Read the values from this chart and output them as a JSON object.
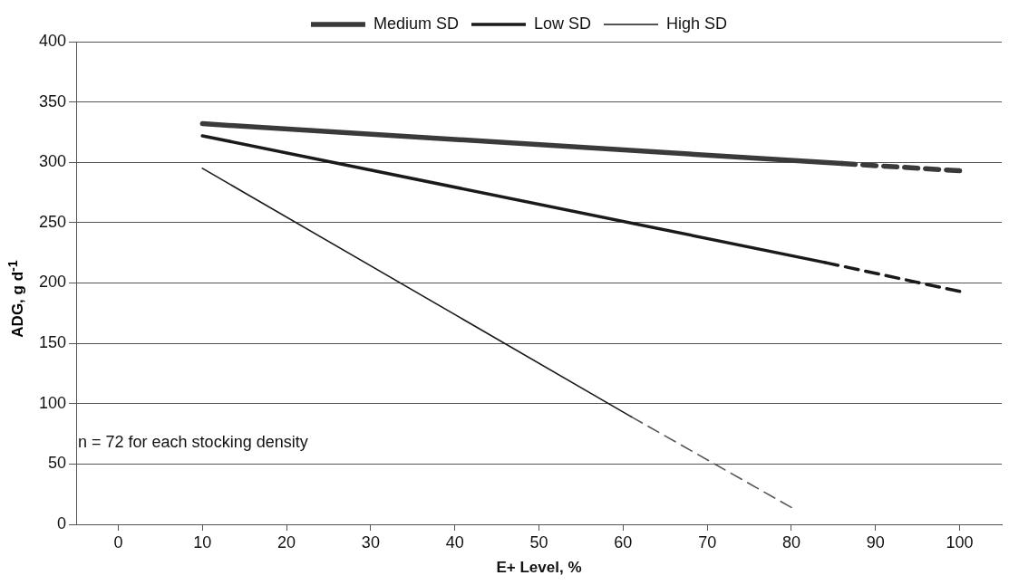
{
  "chart_data": {
    "type": "line",
    "xlabel": "E+ Level, %",
    "ylabel": "ADG, g d$^{-1}$",
    "xlim": [
      -5,
      105
    ],
    "xticks": [
      0,
      10,
      20,
      30,
      40,
      50,
      60,
      70,
      80,
      90,
      100
    ],
    "ylim": [
      0,
      400
    ],
    "yticks": [
      0,
      50,
      100,
      150,
      200,
      250,
      300,
      350,
      400
    ],
    "grid": "y",
    "legend": "top",
    "marker": "none",
    "annotations": [
      "n = 72 for each stocking density"
    ],
    "series": [
      {
        "name": "Medium SD",
        "color": "#3a3a3a",
        "x": [
          10,
          86
        ],
        "values": [
          332,
          299
        ],
        "line_style": "solid"
      },
      {
        "color": "#3a3a3a",
        "x": [
          86,
          100
        ],
        "values": [
          299,
          293
        ],
        "line_style": "dashed"
      },
      {
        "name": "Low SD",
        "color": "#1a1a1a",
        "x": [
          10,
          84
        ],
        "values": [
          322,
          217
        ],
        "line_style": "solid"
      },
      {
        "color": "#1a1a1a",
        "x": [
          84,
          100
        ],
        "values": [
          217,
          193
        ],
        "line_style": "dashed"
      },
      {
        "name": "High SD",
        "color": "#1a1a1a",
        "x": [
          10,
          61
        ],
        "values": [
          295,
          89
        ],
        "line_style": "solid"
      },
      {
        "color": "#555555",
        "x": [
          61,
          80
        ],
        "values": [
          89,
          14
        ],
        "line_style": "dashed"
      }
    ]
  }
}
